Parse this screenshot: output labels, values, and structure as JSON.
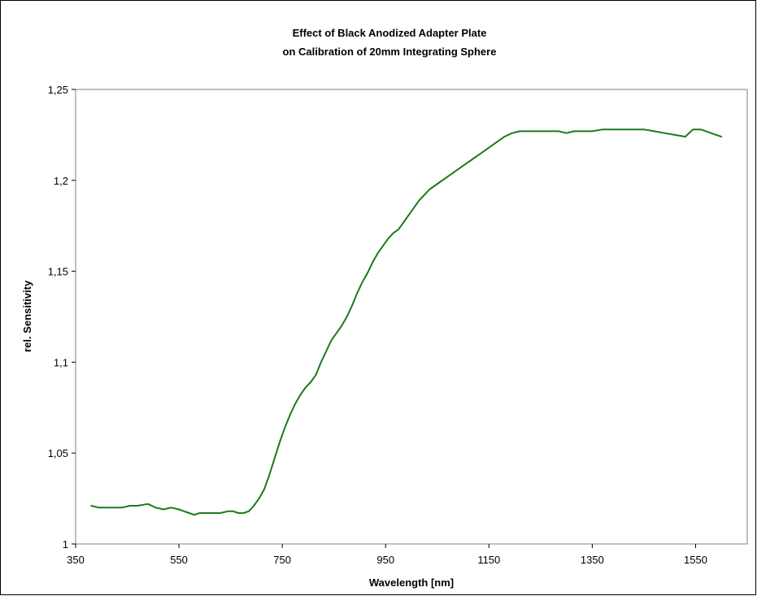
{
  "chart_data": {
    "type": "line",
    "title": "Effect of Black Anodized Adapter Plate",
    "subtitle": "on Calibration of 20mm Integrating Sphere",
    "xlabel": "Wavelength [nm]",
    "ylabel": "rel. Sensitivity",
    "xlim": [
      350,
      1650
    ],
    "ylim": [
      1.0,
      1.25
    ],
    "xticks": [
      350,
      550,
      750,
      950,
      1150,
      1350,
      1550
    ],
    "xtick_labels": [
      "350",
      "550",
      "750",
      "950",
      "1150",
      "1350",
      "1550"
    ],
    "yticks": [
      1.0,
      1.05,
      1.1,
      1.15,
      1.2,
      1.25
    ],
    "ytick_labels": [
      "1",
      "1,05",
      "1,1",
      "1,15",
      "1,2",
      "1,25"
    ],
    "grid": false,
    "plot_background": "#ffffff",
    "line_color": "#1a7a1a",
    "series": [
      {
        "x": [
          380,
          395,
          410,
          425,
          440,
          455,
          470,
          490,
          505,
          520,
          535,
          550,
          560,
          570,
          580,
          590,
          600,
          615,
          630,
          645,
          655,
          665,
          675,
          685,
          695,
          705,
          715,
          725,
          735,
          745,
          755,
          765,
          775,
          785,
          795,
          805,
          815,
          825,
          835,
          845,
          855,
          865,
          875,
          885,
          895,
          905,
          915,
          925,
          935,
          945,
          955,
          965,
          975,
          985,
          995,
          1005,
          1015,
          1025,
          1035,
          1045,
          1055,
          1065,
          1075,
          1085,
          1095,
          1105,
          1120,
          1135,
          1150,
          1165,
          1180,
          1195,
          1210,
          1225,
          1240,
          1255,
          1270,
          1285,
          1300,
          1315,
          1330,
          1350,
          1370,
          1390,
          1410,
          1430,
          1450,
          1470,
          1490,
          1510,
          1530,
          1545,
          1560,
          1570,
          1580,
          1590,
          1600
        ],
        "y": [
          1.021,
          1.02,
          1.02,
          1.02,
          1.02,
          1.021,
          1.021,
          1.022,
          1.02,
          1.019,
          1.02,
          1.019,
          1.018,
          1.017,
          1.016,
          1.017,
          1.017,
          1.017,
          1.017,
          1.018,
          1.018,
          1.017,
          1.017,
          1.018,
          1.021,
          1.025,
          1.03,
          1.038,
          1.047,
          1.056,
          1.064,
          1.071,
          1.077,
          1.082,
          1.086,
          1.089,
          1.093,
          1.1,
          1.106,
          1.112,
          1.116,
          1.12,
          1.125,
          1.131,
          1.138,
          1.144,
          1.149,
          1.155,
          1.16,
          1.164,
          1.168,
          1.171,
          1.173,
          1.177,
          1.181,
          1.185,
          1.189,
          1.192,
          1.195,
          1.197,
          1.199,
          1.201,
          1.203,
          1.205,
          1.207,
          1.209,
          1.212,
          1.215,
          1.218,
          1.221,
          1.224,
          1.226,
          1.227,
          1.227,
          1.227,
          1.227,
          1.227,
          1.227,
          1.226,
          1.227,
          1.227,
          1.227,
          1.228,
          1.228,
          1.228,
          1.228,
          1.228,
          1.227,
          1.226,
          1.225,
          1.224,
          1.228,
          1.228,
          1.227,
          1.226,
          1.225,
          1.224
        ]
      }
    ]
  }
}
